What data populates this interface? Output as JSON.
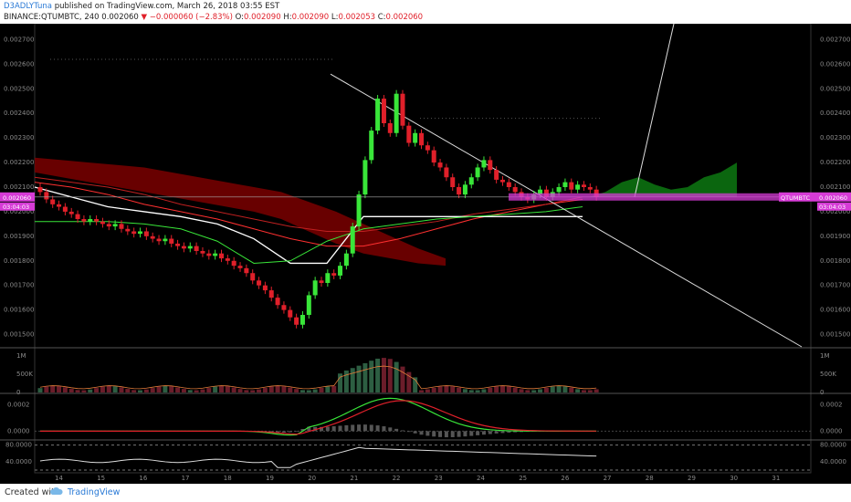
{
  "header": {
    "author": "D3ADLYTuna",
    "published": "published on TradingView.com, March 26, 2018 03:55 EST",
    "symbol_line": "BINANCE:QTUMBTC, 240",
    "last": "0.002060",
    "change": "−0.000060 (−2.83%)",
    "o_label": "O:",
    "o": "0.002090",
    "h_label": "H:",
    "h": "0.002090",
    "l_label": "L:",
    "l": "0.002053",
    "c_label": "C:",
    "c": "0.002060"
  },
  "footer": {
    "created": "Created with",
    "brand": "TradingView"
  },
  "colors": {
    "up": "#39e639",
    "down": "#e0202a",
    "cloud_bear": "#7a0000",
    "cloud_bull": "#0c6b10",
    "tag": "#d63bd6"
  },
  "chart_data": [
    {
      "type": "candlestick",
      "x_tick_labels": [
        "14",
        "15",
        "16",
        "17",
        "18",
        "19",
        "20",
        "21",
        "22",
        "23",
        "24",
        "25",
        "26",
        "27",
        "28",
        "29",
        "30",
        "31"
      ],
      "y_tick_labels": [
        "0.002700",
        "0.002600",
        "0.002500",
        "0.002400",
        "0.002300",
        "0.002200",
        "0.002100",
        "0.002000",
        "0.001900",
        "0.001800",
        "0.001700",
        "0.001600",
        "0.001500"
      ],
      "ylim": [
        0.00145,
        0.00275
      ],
      "price_tag": "0.002060",
      "countdown": "03:04:03",
      "symbol_tag": "QTUMBTC",
      "symbol_price": "0.002060",
      "close_prices": [
        0.00208,
        0.00205,
        0.00203,
        0.00202,
        0.002,
        0.00199,
        0.00197,
        0.00196,
        0.00197,
        0.00196,
        0.00195,
        0.00194,
        0.00195,
        0.00193,
        0.00192,
        0.00191,
        0.00192,
        0.0019,
        0.00189,
        0.00188,
        0.00189,
        0.00187,
        0.00186,
        0.00185,
        0.00186,
        0.00184,
        0.00183,
        0.00182,
        0.00183,
        0.00181,
        0.0018,
        0.00178,
        0.00177,
        0.00175,
        0.00172,
        0.0017,
        0.00168,
        0.00165,
        0.00162,
        0.0016,
        0.00157,
        0.00154,
        0.00158,
        0.00166,
        0.00172,
        0.00171,
        0.00175,
        0.00174,
        0.00178,
        0.00183,
        0.00194,
        0.00207,
        0.00221,
        0.00233,
        0.00246,
        0.00236,
        0.00232,
        0.00248,
        0.00235,
        0.00228,
        0.00232,
        0.00227,
        0.00225,
        0.0022,
        0.00218,
        0.00214,
        0.0021,
        0.00207,
        0.00211,
        0.00214,
        0.00218,
        0.00221,
        0.00217,
        0.00213,
        0.00212,
        0.0021,
        0.00208,
        0.00206,
        0.00205,
        0.00207,
        0.00209,
        0.00206,
        0.00208,
        0.0021,
        0.00212,
        0.00209,
        0.00211,
        0.0021,
        0.00209,
        0.00206
      ]
    },
    {
      "type": "bar",
      "name": "Volume",
      "y_tick_labels": [
        "1M",
        "500K",
        "0"
      ],
      "ylim": [
        0,
        1200000
      ]
    },
    {
      "type": "line",
      "name": "MACD",
      "y_tick_labels": [
        "0.0002",
        "0.0000"
      ],
      "ylim": [
        -6e-05,
        0.00028
      ]
    },
    {
      "type": "line",
      "name": "Oscillator",
      "y_tick_labels": [
        "80.0000",
        "40.0000"
      ],
      "ylim": [
        20,
        90
      ],
      "bands": [
        80,
        20
      ]
    }
  ]
}
